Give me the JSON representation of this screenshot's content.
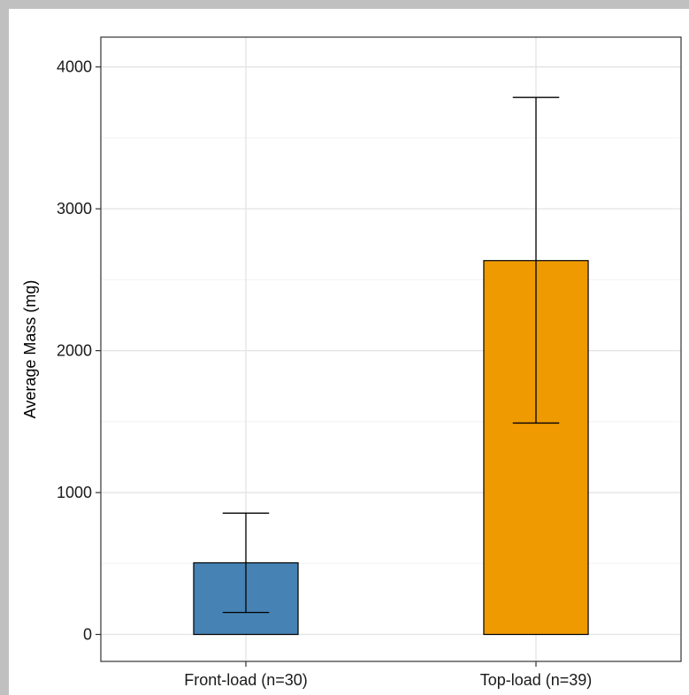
{
  "chart_data": {
    "type": "bar",
    "categories": [
      "Front-load (n=30)",
      "Top-load (n=39)"
    ],
    "values": [
      505,
      2635
    ],
    "error_low": [
      155,
      1490
    ],
    "error_high": [
      855,
      3785
    ],
    "colors": [
      "#4682b4",
      "#ef9a00"
    ],
    "xlabel": "",
    "ylabel": "Average Mass (mg)",
    "ylim": [
      -190,
      4210
    ],
    "yticks": [
      0,
      1000,
      2000,
      3000,
      4000
    ],
    "ytick_labels": [
      "0",
      "1000",
      "2000",
      "3000",
      "4000"
    ],
    "grid": true
  }
}
